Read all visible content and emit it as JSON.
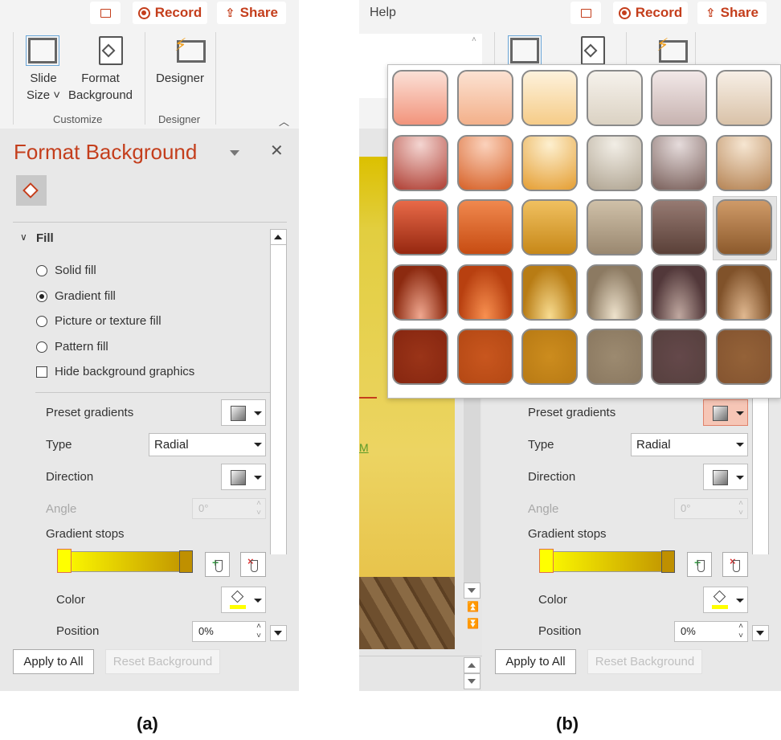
{
  "ribbon": {
    "help_tab": "Help",
    "record": "Record",
    "share": "Share",
    "slide_size": [
      "Slide",
      "Size"
    ],
    "format_background": [
      "Format",
      "Background"
    ],
    "designer": "Designer",
    "group_customize": "Customize",
    "group_designer": "Designer"
  },
  "pane": {
    "title": "Format Background",
    "fill_header": "Fill",
    "fill_options": [
      {
        "label": "Solid fill",
        "selected": false
      },
      {
        "label": "Gradient fill",
        "selected": true
      },
      {
        "label": "Picture or texture fill",
        "selected": false
      },
      {
        "label": "Pattern fill",
        "selected": false
      }
    ],
    "hide_graphics": {
      "label": "Hide background graphics",
      "checked": false
    },
    "preset_gradients": "Preset gradients",
    "type_label": "Type",
    "type_value": "Radial",
    "direction": "Direction",
    "angle_label": "Angle",
    "angle_value": "0°",
    "gradient_stops": "Gradient stops",
    "stops": [
      {
        "position": 0,
        "color": "#ffff00"
      },
      {
        "position": 100,
        "color": "#bf9000"
      }
    ],
    "color_label": "Color",
    "color_value": "#ffff00",
    "position_label": "Position",
    "position_value": "0%",
    "apply_all": "Apply to All",
    "reset": "Reset Background"
  },
  "colors": {
    "accent": "#c43e1c",
    "pane_bg": "#e8e8e8"
  },
  "preset_gallery": {
    "hovered": [
      2,
      5
    ],
    "rows": [
      [
        [
          "#fbe0d6",
          "#f2947c",
          "l"
        ],
        [
          "#fce2d2",
          "#f3b08a",
          "l"
        ],
        [
          "#fdf2dc",
          "#f6cc88",
          "l"
        ],
        [
          "#f6f2ec",
          "#dbd2c3",
          "l"
        ],
        [
          "#f2e8e8",
          "#c7b3b0",
          "l"
        ],
        [
          "#f7efe6",
          "#d9c2a8",
          "l"
        ]
      ],
      [
        [
          "#f4d6d2",
          "#b2453a",
          "r"
        ],
        [
          "#fbd2bc",
          "#d8662e",
          "r"
        ],
        [
          "#fdf0d0",
          "#e6a23a",
          "r"
        ],
        [
          "#f2eee6",
          "#b3a896",
          "r"
        ],
        [
          "#e6dcdc",
          "#7e6560",
          "r"
        ],
        [
          "#f6e6d2",
          "#b8885a",
          "r"
        ]
      ],
      [
        [
          "#e86a48",
          "#962810",
          "l"
        ],
        [
          "#f0884e",
          "#c74c12",
          "l"
        ],
        [
          "#f0c060",
          "#c78818",
          "l"
        ],
        [
          "#cfc0a8",
          "#9a8870",
          "l"
        ],
        [
          "#967a72",
          "#5a4038",
          "l"
        ],
        [
          "#cf9a68",
          "#8c5a2c",
          "l"
        ]
      ],
      [
        [
          "#f0a890",
          "#8c2a10",
          "b"
        ],
        [
          "#f89050",
          "#b84010",
          "b"
        ],
        [
          "#f8dc90",
          "#b87c14",
          "b"
        ],
        [
          "#eee2cc",
          "#8c7a62",
          "b"
        ],
        [
          "#c0a8a0",
          "#52383a",
          "b"
        ],
        [
          "#e0b890",
          "#80522a",
          "b"
        ]
      ],
      [
        [
          "#9a3418",
          "#862610",
          "s"
        ],
        [
          "#c8561e",
          "#b44814",
          "s"
        ],
        [
          "#cc8c1e",
          "#b87a14",
          "s"
        ],
        [
          "#9c8a70",
          "#8a7860",
          "s"
        ],
        [
          "#64484a",
          "#56403e",
          "s"
        ],
        [
          "#946238",
          "#845430",
          "s"
        ]
      ]
    ]
  },
  "captions": [
    "(a)",
    "(b)"
  ]
}
